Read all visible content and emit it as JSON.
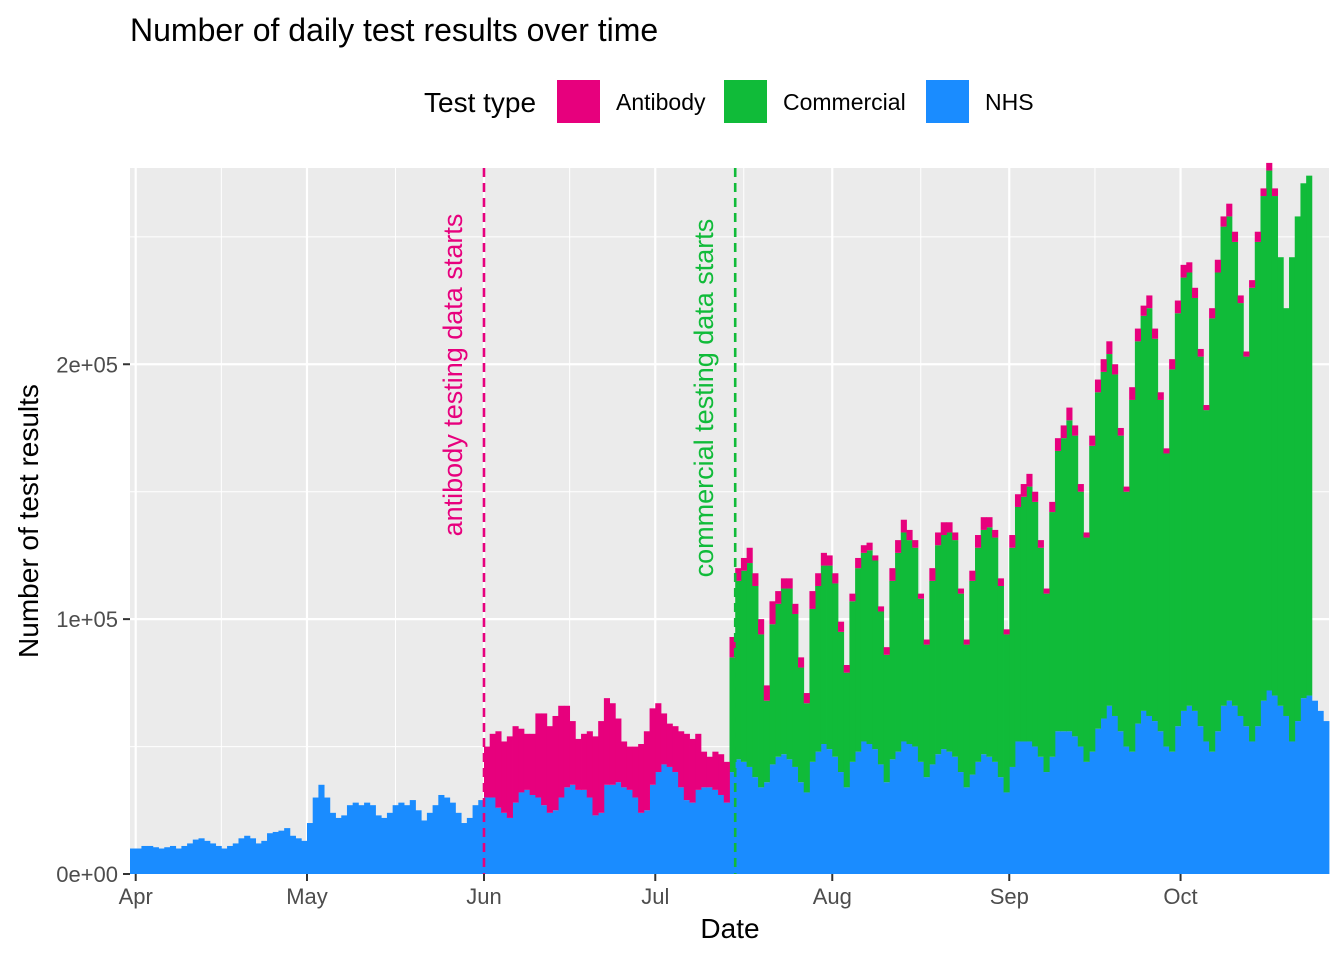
{
  "chart_data": {
    "type": "bar",
    "stacked": true,
    "title": "Number of daily test results over time",
    "xlabel": "Date",
    "ylabel": "Number of test results",
    "legend_title": "Test type",
    "legend_position": "top",
    "grid": true,
    "x_range": [
      "2020-03-31",
      "2020-10-27"
    ],
    "ylim": [
      0,
      277000
    ],
    "x_ticks": [
      {
        "label": "Apr",
        "date": "2020-04-01"
      },
      {
        "label": "May",
        "date": "2020-05-01"
      },
      {
        "label": "Jun",
        "date": "2020-06-01"
      },
      {
        "label": "Jul",
        "date": "2020-07-01"
      },
      {
        "label": "Aug",
        "date": "2020-08-01"
      },
      {
        "label": "Sep",
        "date": "2020-09-01"
      },
      {
        "label": "Oct",
        "date": "2020-10-01"
      }
    ],
    "y_ticks": [
      {
        "label": "0e+00",
        "value": 0
      },
      {
        "label": "1e+05",
        "value": 100000
      },
      {
        "label": "2e+05",
        "value": 200000
      }
    ],
    "colors": {
      "Antibody": "#e7007d",
      "Commercial": "#10bb39",
      "NHS": "#1a8cff"
    },
    "series": [
      {
        "name": "Antibody",
        "color": "#e7007d",
        "start_date": "2020-06-01",
        "values": [
          20000,
          25000,
          30000,
          28000,
          32000,
          30000,
          25000,
          22000,
          24000,
          33000,
          36000,
          34000,
          37000,
          36000,
          32000,
          25000,
          20000,
          22000,
          26000,
          31000,
          36000,
          34000,
          32000,
          25000,
          18000,
          17000,
          20000,
          27000,
          31000,
          30000,
          27000,
          20000,
          17000,
          18000,
          22000,
          26000,
          25000,
          22000,
          14000,
          12000,
          15000,
          16000,
          16000,
          8000,
          5000,
          5000,
          6000,
          5000,
          6000,
          6000,
          9000,
          5000,
          4000,
          4000,
          4000,
          4000,
          4000,
          7000,
          5000,
          5000,
          4000,
          4000,
          4000,
          3000,
          3000,
          4000,
          3000,
          3000,
          2000,
          2000,
          3000,
          5000,
          5000,
          5000,
          4000,
          3000,
          2000,
          2000,
          5000,
          5000,
          5000,
          4000,
          3000,
          2000,
          2000,
          4000,
          5000,
          5000,
          4000,
          3000,
          3000,
          2000,
          5000,
          5000,
          5000,
          5000,
          4000,
          3000,
          2000,
          4000,
          5000,
          5000,
          5000,
          4000,
          3000,
          2000,
          4000,
          5000,
          5000,
          5000,
          4000,
          3000,
          2000,
          5000,
          5000,
          4000,
          5000,
          4000,
          3000,
          2000,
          4000,
          5000,
          5000,
          4000,
          4000,
          3000,
          2000,
          4000,
          5000,
          4000,
          5000,
          4000,
          3000,
          2000,
          3000,
          4000,
          3000,
          3000,
          3000
        ]
      },
      {
        "name": "Commercial",
        "color": "#10bb39",
        "start_date": "2020-07-14",
        "values": [
          45000,
          70000,
          75000,
          80000,
          75000,
          60000,
          32000,
          55000,
          60000,
          65000,
          67000,
          60000,
          45000,
          35000,
          60000,
          65000,
          70000,
          72000,
          68000,
          55000,
          45000,
          63000,
          72000,
          74000,
          76000,
          74000,
          60000,
          50000,
          70000,
          78000,
          82000,
          80000,
          78000,
          64000,
          52000,
          72000,
          82000,
          84000,
          86000,
          85000,
          70000,
          56000,
          76000,
          84000,
          88000,
          90000,
          88000,
          75000,
          62000,
          86000,
          92000,
          96000,
          100000,
          96000,
          82000,
          70000,
          96000,
          110000,
          115000,
          122000,
          118000,
          100000,
          88000,
          120000,
          132000,
          136000,
          138000,
          134000,
          116000,
          100000,
          138000,
          150000,
          155000,
          160000,
          150000,
          130000,
          115000,
          150000,
          162000,
          170000,
          170000,
          162000,
          145000,
          130000,
          170000,
          180000,
          188000,
          190000,
          182000,
          162000,
          145000,
          178000,
          190000,
          198000,
          204000,
          196000,
          176000,
          160000,
          190000,
          198000,
          202000,
          204000
        ]
      },
      {
        "name": "NHS",
        "color": "#1a8cff",
        "start_date": "2020-03-31",
        "values": [
          10000,
          10000,
          11000,
          11000,
          10500,
          10000,
          10500,
          11000,
          10000,
          11000,
          12000,
          13500,
          14000,
          13000,
          12000,
          11000,
          10000,
          11000,
          12000,
          14000,
          15000,
          14000,
          12000,
          13000,
          16000,
          16500,
          17000,
          18000,
          15000,
          14000,
          13000,
          20000,
          30000,
          35000,
          30000,
          24000,
          22000,
          23000,
          27000,
          28000,
          27000,
          28000,
          27000,
          23000,
          22000,
          24000,
          27000,
          28000,
          27000,
          29000,
          25000,
          21000,
          24000,
          27000,
          31000,
          30000,
          28000,
          24000,
          20000,
          22000,
          27000,
          29000,
          30000,
          30000,
          26000,
          24000,
          22000,
          28000,
          32000,
          33000,
          31000,
          30000,
          27000,
          24000,
          25000,
          30000,
          34000,
          35000,
          33000,
          33000,
          30000,
          23000,
          24000,
          35000,
          35000,
          36000,
          34000,
          33000,
          30000,
          24000,
          25000,
          35000,
          40000,
          43000,
          42000,
          40000,
          34000,
          29000,
          28000,
          33000,
          34000,
          34000,
          33000,
          31000,
          28000,
          40000,
          45000,
          44000,
          42000,
          38000,
          34000,
          36000,
          43000,
          46000,
          47000,
          45000,
          42000,
          36000,
          32000,
          44000,
          48000,
          51000,
          49000,
          46000,
          40000,
          34000,
          44000,
          48000,
          52000,
          51000,
          49000,
          43000,
          36000,
          45000,
          48000,
          52000,
          51000,
          50000,
          44000,
          38000,
          43000,
          47000,
          49000,
          48000,
          46000,
          40000,
          34000,
          39000,
          44000,
          47000,
          46000,
          44000,
          38000,
          32000,
          42000,
          52000,
          52000,
          52000,
          50000,
          46000,
          40000,
          46000,
          56000,
          56000,
          56000,
          54000,
          50000,
          44000,
          48000,
          57000,
          61000,
          66000,
          62000,
          56000,
          50000,
          48000,
          59000,
          64000,
          62000,
          60000,
          56000,
          50000,
          48000,
          58000,
          64000,
          66000,
          64000,
          58000,
          52000,
          48000,
          56000,
          66000,
          68000,
          66000,
          62000,
          58000,
          52000,
          58000,
          68000,
          72000,
          70000,
          66000,
          62000,
          52000,
          60000,
          69000,
          70000,
          68000,
          64000,
          60000
        ]
      }
    ],
    "annotations": [
      {
        "text": "antibody testing data starts",
        "date": "2020-06-01",
        "color": "#e7007d"
      },
      {
        "text": "commercial testing data starts",
        "date": "2020-07-15",
        "color": "#10bb39"
      }
    ]
  }
}
